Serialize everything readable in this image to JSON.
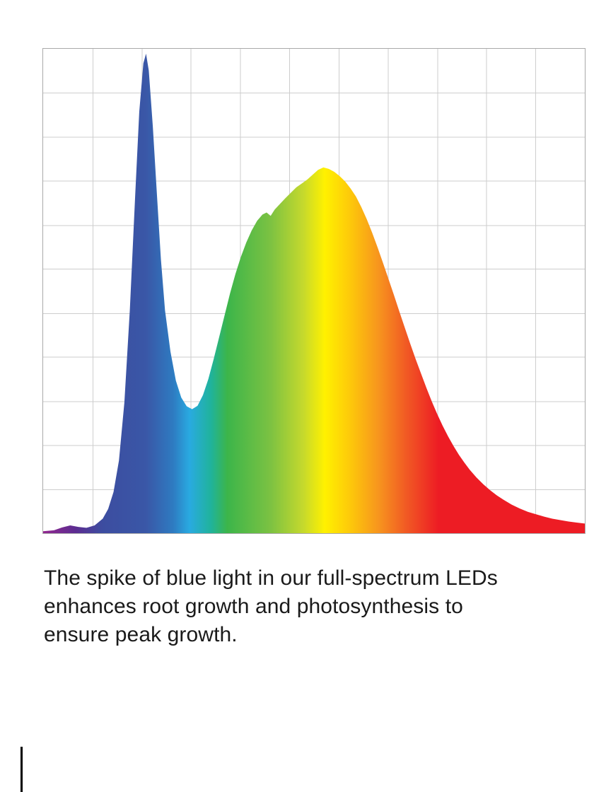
{
  "page": {
    "background": "#ffffff"
  },
  "chart_data": {
    "type": "area",
    "title": "",
    "xlabel": "",
    "ylabel": "",
    "legend": "none",
    "grid": {
      "visible": true,
      "columns": 11,
      "rows": 11,
      "line_color": "#cdcdcd",
      "border_color": "#a9a9a9"
    },
    "x_range": [
      380,
      780
    ],
    "ylim": [
      0,
      1
    ],
    "description": "Full-spectrum LED spectral power distribution: sharp blue spike near 455 nm, dip near 490 nm, broad green-yellow-red hump peaking near 585 nm, long red tail to 780 nm.",
    "points": [
      [
        380,
        0.004
      ],
      [
        388,
        0.006
      ],
      [
        394,
        0.012
      ],
      [
        400,
        0.016
      ],
      [
        406,
        0.013
      ],
      [
        412,
        0.011
      ],
      [
        418,
        0.016
      ],
      [
        424,
        0.03
      ],
      [
        428,
        0.05
      ],
      [
        432,
        0.085
      ],
      [
        436,
        0.15
      ],
      [
        440,
        0.27
      ],
      [
        444,
        0.46
      ],
      [
        448,
        0.7
      ],
      [
        451,
        0.87
      ],
      [
        454,
        0.97
      ],
      [
        456,
        0.99
      ],
      [
        458,
        0.955
      ],
      [
        461,
        0.84
      ],
      [
        464,
        0.7
      ],
      [
        467,
        0.565
      ],
      [
        470,
        0.46
      ],
      [
        474,
        0.375
      ],
      [
        478,
        0.315
      ],
      [
        482,
        0.28
      ],
      [
        486,
        0.262
      ],
      [
        490,
        0.256
      ],
      [
        494,
        0.263
      ],
      [
        498,
        0.285
      ],
      [
        502,
        0.318
      ],
      [
        506,
        0.36
      ],
      [
        510,
        0.405
      ],
      [
        514,
        0.45
      ],
      [
        518,
        0.495
      ],
      [
        522,
        0.535
      ],
      [
        526,
        0.57
      ],
      [
        530,
        0.6
      ],
      [
        534,
        0.625
      ],
      [
        538,
        0.645
      ],
      [
        542,
        0.658
      ],
      [
        545,
        0.662
      ],
      [
        548,
        0.655
      ],
      [
        551,
        0.668
      ],
      [
        555,
        0.68
      ],
      [
        559,
        0.692
      ],
      [
        563,
        0.703
      ],
      [
        567,
        0.714
      ],
      [
        571,
        0.722
      ],
      [
        575,
        0.73
      ],
      [
        579,
        0.74
      ],
      [
        583,
        0.75
      ],
      [
        587,
        0.755
      ],
      [
        591,
        0.752
      ],
      [
        595,
        0.746
      ],
      [
        599,
        0.737
      ],
      [
        603,
        0.726
      ],
      [
        607,
        0.712
      ],
      [
        611,
        0.695
      ],
      [
        615,
        0.673
      ],
      [
        619,
        0.648
      ],
      [
        623,
        0.62
      ],
      [
        627,
        0.59
      ],
      [
        631,
        0.558
      ],
      [
        635,
        0.525
      ],
      [
        639,
        0.492
      ],
      [
        643,
        0.458
      ],
      [
        647,
        0.425
      ],
      [
        651,
        0.392
      ],
      [
        655,
        0.36
      ],
      [
        659,
        0.33
      ],
      [
        663,
        0.3
      ],
      [
        667,
        0.272
      ],
      [
        671,
        0.246
      ],
      [
        675,
        0.222
      ],
      [
        679,
        0.2
      ],
      [
        683,
        0.18
      ],
      [
        687,
        0.162
      ],
      [
        691,
        0.146
      ],
      [
        695,
        0.131
      ],
      [
        700,
        0.115
      ],
      [
        705,
        0.101
      ],
      [
        710,
        0.089
      ],
      [
        715,
        0.078
      ],
      [
        720,
        0.069
      ],
      [
        726,
        0.059
      ],
      [
        732,
        0.051
      ],
      [
        738,
        0.044
      ],
      [
        744,
        0.039
      ],
      [
        750,
        0.034
      ],
      [
        756,
        0.03
      ],
      [
        762,
        0.027
      ],
      [
        768,
        0.024
      ],
      [
        774,
        0.022
      ],
      [
        780,
        0.02
      ]
    ],
    "gradient_stops": [
      {
        "offset": 0.0,
        "color": "#92278f"
      },
      {
        "offset": 0.06,
        "color": "#5c2d91"
      },
      {
        "offset": 0.11,
        "color": "#3c4da0"
      },
      {
        "offset": 0.19,
        "color": "#3a57a7"
      },
      {
        "offset": 0.24,
        "color": "#2e7bc1"
      },
      {
        "offset": 0.27,
        "color": "#29aae1"
      },
      {
        "offset": 0.31,
        "color": "#20b39b"
      },
      {
        "offset": 0.34,
        "color": "#3cb54a"
      },
      {
        "offset": 0.42,
        "color": "#7cc242"
      },
      {
        "offset": 0.48,
        "color": "#c5d92d"
      },
      {
        "offset": 0.52,
        "color": "#fff100"
      },
      {
        "offset": 0.57,
        "color": "#fdc60b"
      },
      {
        "offset": 0.62,
        "color": "#f7941e"
      },
      {
        "offset": 0.67,
        "color": "#f15a24"
      },
      {
        "offset": 0.73,
        "color": "#ed1c24"
      },
      {
        "offset": 1.0,
        "color": "#ed1c24"
      }
    ]
  },
  "caption": {
    "color": "#1a1a1a",
    "text": "The spike of blue light in our full-spectrum LEDs enhances root growth and photosynthesis to ensure peak growth.",
    "lines": [
      "The spike of blue light in our full-spectrum LEDs",
      "enhances root growth and photosynthesis to",
      "ensure peak growth."
    ]
  }
}
